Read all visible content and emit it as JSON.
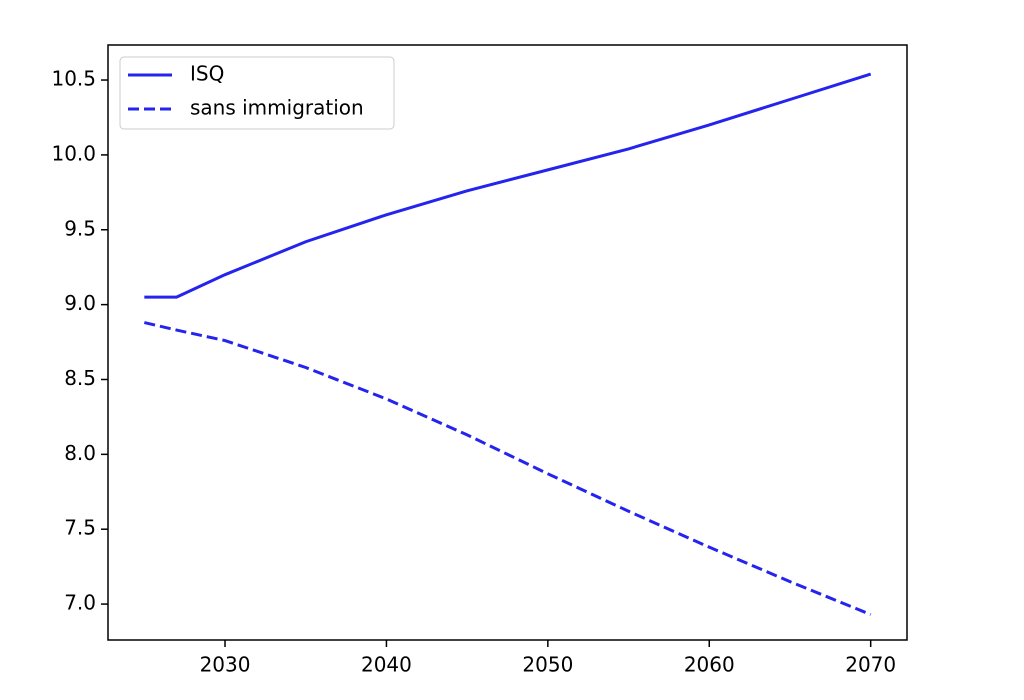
{
  "chart_data": {
    "type": "line",
    "x": [
      2025,
      2027,
      2030,
      2035,
      2040,
      2045,
      2050,
      2055,
      2060,
      2065,
      2070
    ],
    "series": [
      {
        "name": "ISQ",
        "color": "#2424ee",
        "linestyle": "solid",
        "values": [
          9.05,
          9.05,
          9.2,
          9.42,
          9.6,
          9.76,
          9.9,
          10.04,
          10.2,
          10.37,
          10.54
        ]
      },
      {
        "name": "sans immigration",
        "color": "#2424ee",
        "linestyle": "dashed",
        "values": [
          8.88,
          8.83,
          8.76,
          8.58,
          8.37,
          8.13,
          7.87,
          7.62,
          7.38,
          7.15,
          6.93
        ]
      }
    ],
    "xlim": [
      2022.75,
      2072.25
    ],
    "xticks": [
      2030,
      2040,
      2050,
      2060,
      2070
    ],
    "ylim": [
      6.76,
      10.734
    ],
    "yticks": [
      {
        "value": 7,
        "label": "7.0"
      },
      7.5,
      {
        "value": 8,
        "label": "8.0"
      },
      8.5,
      {
        "value": 9,
        "label": "9.0"
      },
      9.5,
      {
        "value": 10,
        "label": "10.0"
      },
      10.5
    ],
    "legend": "upper left",
    "grid": false
  }
}
